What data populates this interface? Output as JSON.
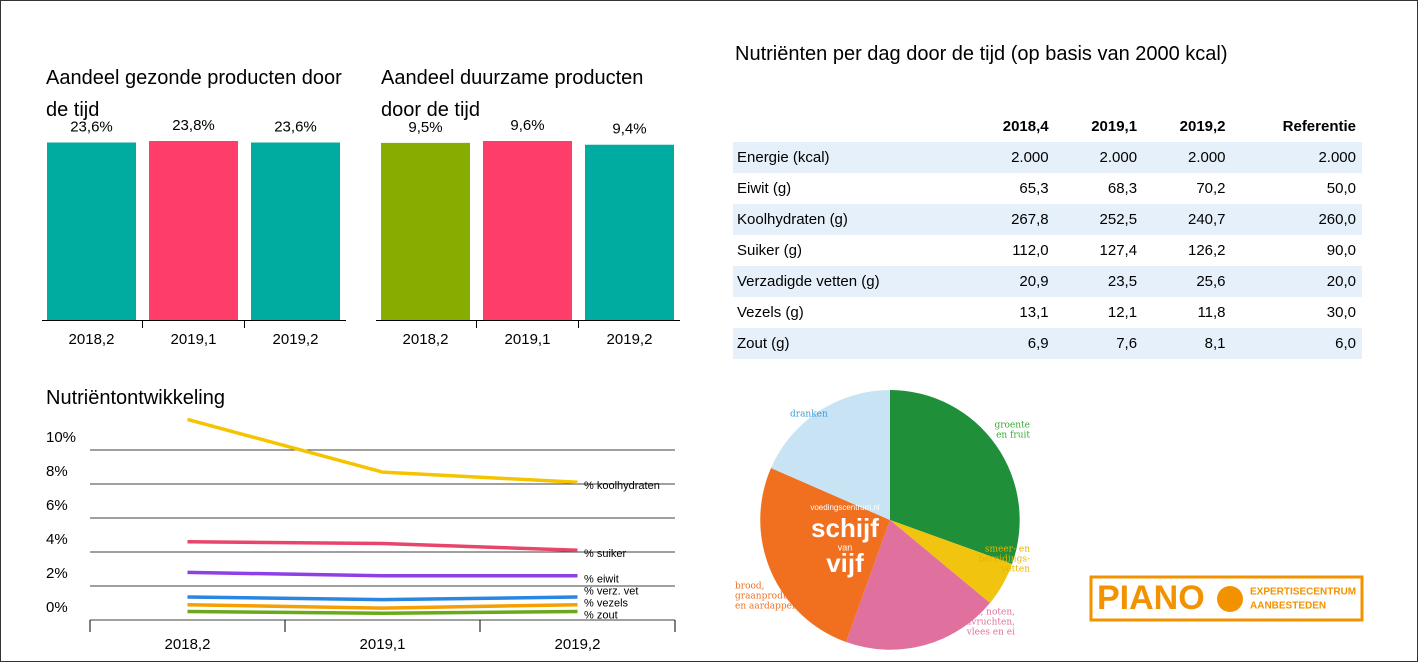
{
  "chart_data": [
    {
      "type": "bar",
      "title": "Aandeel gezonde producten door de tijd",
      "categories": [
        "2018,2",
        "2019,1",
        "2019,2"
      ],
      "values": [
        23.6,
        23.8,
        23.6
      ],
      "value_labels": [
        "23,6%",
        "23,8%",
        "23,6%"
      ],
      "colors": [
        "#00ab9f",
        "#ff3d6a",
        "#00ab9f"
      ]
    },
    {
      "type": "bar",
      "title": "Aandeel duurzame producten door de tijd",
      "categories": [
        "2018,2",
        "2019,1",
        "2019,2"
      ],
      "values": [
        9.5,
        9.6,
        9.4
      ],
      "value_labels": [
        "9,5%",
        "9,6%",
        "9,4%"
      ],
      "colors": [
        "#86ad00",
        "#ff3d6a",
        "#00ab9f"
      ]
    },
    {
      "type": "line",
      "title": "Nutriëntontwikkeling",
      "categories": [
        "2018,2",
        "2019,1",
        "2019,2"
      ],
      "ylim": [
        0,
        12
      ],
      "yticks": [
        {
          "value": 0,
          "label": "0%"
        },
        {
          "value": 2,
          "label": "2%"
        },
        {
          "value": 4,
          "label": "4%"
        },
        {
          "value": 6,
          "label": "6%"
        },
        {
          "value": 8,
          "label": "8%"
        },
        {
          "value": 10,
          "label": "10%"
        }
      ],
      "grid": true,
      "series": [
        {
          "name": "% koolhydraten",
          "color": "#f5c400",
          "values": [
            11.8,
            8.7,
            8.1
          ]
        },
        {
          "name": "% suiker",
          "color": "#e8456b",
          "values": [
            4.6,
            4.5,
            4.1
          ]
        },
        {
          "name": "% eiwit",
          "color": "#8e3fe6",
          "values": [
            2.8,
            2.6,
            2.6
          ]
        },
        {
          "name": "% verz. vet",
          "color": "#2a86e0",
          "values": [
            1.35,
            1.2,
            1.35
          ]
        },
        {
          "name": "% vezels",
          "color": "#f5a000",
          "values": [
            0.9,
            0.7,
            0.9
          ]
        },
        {
          "name": "% zout",
          "color": "#6aaa1a",
          "values": [
            0.5,
            0.4,
            0.5
          ]
        }
      ]
    }
  ],
  "table": {
    "title": "Nutriënten per dag door de tijd (op basis van 2000 kcal)",
    "columns": [
      "2018,4",
      "2019,1",
      "2019,2",
      "Referentie"
    ],
    "rows": [
      {
        "label": "Energie (kcal)",
        "cells": [
          "2.000",
          "2.000",
          "2.000",
          "2.000"
        ]
      },
      {
        "label": "Eiwit (g)",
        "cells": [
          "65,3",
          "68,3",
          "70,2",
          "50,0"
        ]
      },
      {
        "label": "Koolhydraten (g)",
        "cells": [
          "267,8",
          "252,5",
          "240,7",
          "260,0"
        ]
      },
      {
        "label": "Suiker (g)",
        "cells": [
          "112,0",
          "127,4",
          "126,2",
          "90,0"
        ]
      },
      {
        "label": "Verzadigde vetten (g)",
        "cells": [
          "20,9",
          "23,5",
          "25,6",
          "20,0"
        ]
      },
      {
        "label": "Vezels (g)",
        "cells": [
          "13,1",
          "12,1",
          "11,8",
          "30,0"
        ]
      },
      {
        "label": "Zout (g)",
        "cells": [
          "6,9",
          "7,6",
          "8,1",
          "6,0"
        ]
      }
    ]
  },
  "schijf": {
    "site": "voedingscentrum.nl",
    "word1": "schijf",
    "word2": "van",
    "word3": "vijf",
    "dranken": [
      "dranken"
    ],
    "groente": [
      "groente",
      "en fruit"
    ],
    "smeer": [
      "smeer- en",
      "bereidings-",
      "vetten"
    ],
    "zuivel": [
      "zuivel, noten,",
      "vis, peulvruchten,",
      "vlees en ei"
    ],
    "brood": [
      "brood,",
      "graanproducten",
      "en aardappelen"
    ]
  },
  "logo": {
    "name": "PIANO",
    "line1": "EXPERTISECENTRUM",
    "line2": "AANBESTEDEN"
  }
}
